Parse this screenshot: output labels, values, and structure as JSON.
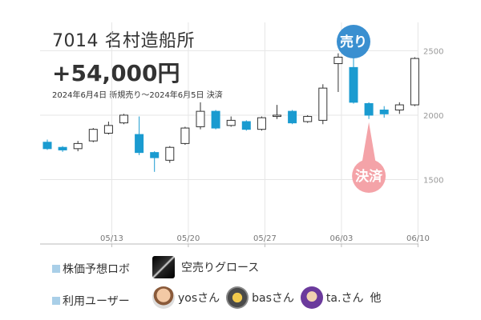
{
  "header": {
    "title": "7014 名村造船所",
    "profit": "+54,000円",
    "period": "2024年6月4日 新規売り～2024年6月5日 決済"
  },
  "colors": {
    "up": "#ffffff",
    "down": "#1a9bd0",
    "outline": "#333333",
    "grid": "#e6e6e6",
    "sell_bubble": "#3a8fd0",
    "settle_bubble": "#f4a3a8"
  },
  "chart_data": {
    "type": "candlestick",
    "y_ticks": [
      "2500",
      "2000",
      "1500"
    ],
    "ylim": [
      1000,
      2720
    ],
    "x_ticks": [
      "05/13",
      "05/20",
      "05/27",
      "06/03",
      "06/10"
    ],
    "candles": [
      {
        "open": 1790,
        "close": 1740,
        "high": 1810,
        "low": 1730
      },
      {
        "open": 1750,
        "close": 1730,
        "high": 1760,
        "low": 1715
      },
      {
        "open": 1740,
        "close": 1780,
        "high": 1800,
        "low": 1720
      },
      {
        "open": 1800,
        "close": 1890,
        "high": 1900,
        "low": 1790
      },
      {
        "open": 1860,
        "close": 1920,
        "high": 1950,
        "low": 1850
      },
      {
        "open": 1940,
        "close": 2000,
        "high": 2010,
        "low": 1930
      },
      {
        "open": 1850,
        "close": 1710,
        "high": 1990,
        "low": 1690
      },
      {
        "open": 1710,
        "close": 1670,
        "high": 1720,
        "low": 1560
      },
      {
        "open": 1650,
        "close": 1750,
        "high": 1760,
        "low": 1630
      },
      {
        "open": 1780,
        "close": 1900,
        "high": 1910,
        "low": 1770
      },
      {
        "open": 1910,
        "close": 2030,
        "high": 2100,
        "low": 1890
      },
      {
        "open": 2030,
        "close": 1900,
        "high": 2040,
        "low": 1890
      },
      {
        "open": 1920,
        "close": 1960,
        "high": 1990,
        "low": 1910
      },
      {
        "open": 1950,
        "close": 1890,
        "high": 1960,
        "low": 1880
      },
      {
        "open": 1890,
        "close": 1980,
        "high": 1990,
        "low": 1880
      },
      {
        "open": 1990,
        "close": 2000,
        "high": 2080,
        "low": 1970
      },
      {
        "open": 2030,
        "close": 1940,
        "high": 2040,
        "low": 1930
      },
      {
        "open": 1950,
        "close": 1990,
        "high": 2000,
        "low": 1940
      },
      {
        "open": 1960,
        "close": 2210,
        "high": 2240,
        "low": 1930
      },
      {
        "open": 2400,
        "close": 2450,
        "high": 2480,
        "low": 2180
      },
      {
        "open": 2370,
        "close": 2100,
        "high": 2500,
        "low": 2090
      },
      {
        "open": 2090,
        "close": 2000,
        "high": 2100,
        "low": 1970
      },
      {
        "open": 2040,
        "close": 2010,
        "high": 2070,
        "low": 1980
      },
      {
        "open": 2040,
        "close": 2080,
        "high": 2100,
        "low": 2010
      },
      {
        "open": 2080,
        "close": 2440,
        "high": 2450,
        "low": 2070
      }
    ],
    "tick_positions": [
      4,
      9,
      14,
      19,
      24
    ],
    "annotations": [
      {
        "label": "売り",
        "index": 20,
        "placement": "above"
      },
      {
        "label": "決済",
        "index": 21,
        "placement": "below"
      }
    ]
  },
  "legend": {
    "ai_label": "株価予想ロボ",
    "ai_name": "空売りグロース",
    "users_label": "利用ユーザー",
    "users": [
      "yosさん",
      "basさん",
      "ta.さん"
    ],
    "others": "他"
  }
}
